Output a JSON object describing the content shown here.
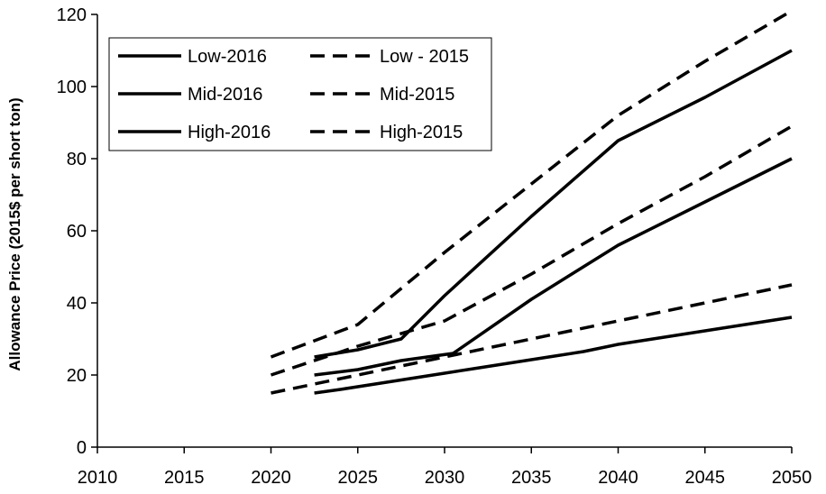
{
  "chart_data": {
    "type": "line",
    "title": "",
    "xlabel": "",
    "ylabel": "Allowance Price (2015$ per short ton)",
    "xlim": [
      2010,
      2050
    ],
    "ylim": [
      0,
      120
    ],
    "x_ticks": [
      "2010",
      "2015",
      "2020",
      "2025",
      "2030",
      "2035",
      "2040",
      "2045",
      "2050"
    ],
    "y_ticks": [
      "0",
      "20",
      "40",
      "60",
      "80",
      "100",
      "120"
    ],
    "grid": false,
    "legend_position": "top-left",
    "colors": {
      "line": "#000000",
      "axis": "#000000",
      "background": "#ffffff"
    },
    "series": [
      {
        "name": "Low-2016",
        "style": "solid",
        "x": [
          2022.5,
          2024,
          2026,
          2028,
          2030,
          2032,
          2034,
          2036,
          2038,
          2040,
          2042,
          2044,
          2046,
          2048,
          2050
        ],
        "y": [
          15,
          16,
          17.5,
          19,
          20.5,
          22,
          23.5,
          25,
          26.5,
          28.5,
          30,
          31.5,
          33,
          34.5,
          36
        ]
      },
      {
        "name": "Low - 2015",
        "style": "dashed",
        "x": [
          2020,
          2025,
          2030,
          2035,
          2040,
          2045,
          2050
        ],
        "y": [
          15,
          20,
          25,
          30,
          35,
          40,
          45
        ]
      },
      {
        "name": "Mid-2016",
        "style": "solid",
        "x": [
          2022.5,
          2025,
          2027.5,
          2030.5,
          2035,
          2040,
          2045,
          2050
        ],
        "y": [
          20,
          21.5,
          24,
          26,
          41,
          56,
          68,
          80
        ]
      },
      {
        "name": "Mid-2015",
        "style": "dashed",
        "x": [
          2020,
          2025,
          2030,
          2035,
          2040,
          2045,
          2050
        ],
        "y": [
          20,
          28,
          35,
          48,
          62,
          75,
          89
        ]
      },
      {
        "name": "High-2016",
        "style": "solid",
        "x": [
          2022.5,
          2025,
          2027.5,
          2030,
          2035,
          2040,
          2045,
          2050
        ],
        "y": [
          25,
          27,
          30,
          42,
          64,
          85,
          97,
          110
        ]
      },
      {
        "name": "High-2015",
        "style": "dashed",
        "x": [
          2020,
          2025,
          2030,
          2035,
          2040,
          2045,
          2050
        ],
        "y": [
          25,
          34,
          54,
          73,
          92,
          107,
          121
        ]
      }
    ]
  }
}
